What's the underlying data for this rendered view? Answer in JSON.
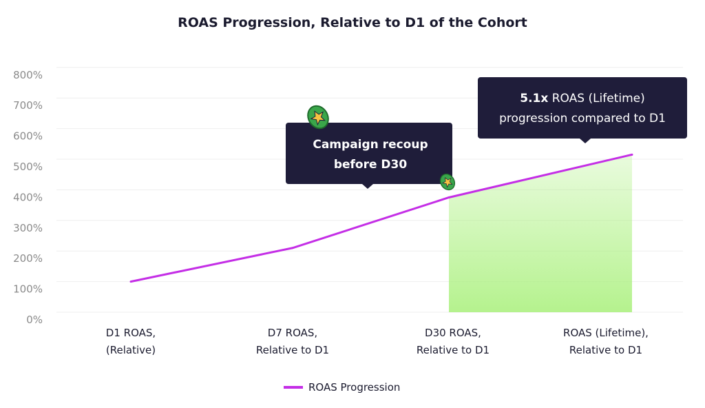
{
  "chart_data": {
    "type": "line",
    "title": "ROAS Progression, Relative to D1 of the Cohort",
    "categories": [
      [
        "D1 ROAS,",
        "(Relative)"
      ],
      [
        "D7 ROAS,",
        "Relative to D1"
      ],
      [
        "D30 ROAS,",
        "Relative to D1"
      ],
      [
        "ROAS (Lifetime),",
        "Relative to D1"
      ]
    ],
    "series": [
      {
        "name": "ROAS Progression",
        "values": [
          100,
          210,
          375,
          515
        ],
        "color": "#c42ee6"
      }
    ],
    "yticks": [
      "0%",
      "100%",
      "200%",
      "300%",
      "400%",
      "500%",
      "600%",
      "700%",
      "800%"
    ],
    "ylim": [
      0,
      800
    ],
    "grid": true,
    "legend_position": "bottom",
    "highlight": {
      "from_category": 2,
      "to_category": 3,
      "color": "#a8f07a"
    },
    "annotations": [
      {
        "lines": [
          "Campaign recoup",
          "before D30"
        ],
        "bold": true,
        "icon": "star-coin-icon"
      },
      {
        "bold_part": "5.1x",
        "rest": " ROAS (Lifetime)",
        "line2": "progression compared to D1"
      }
    ],
    "annotation_color": "#1f1d3a",
    "icon_color": "#3aa64a"
  }
}
